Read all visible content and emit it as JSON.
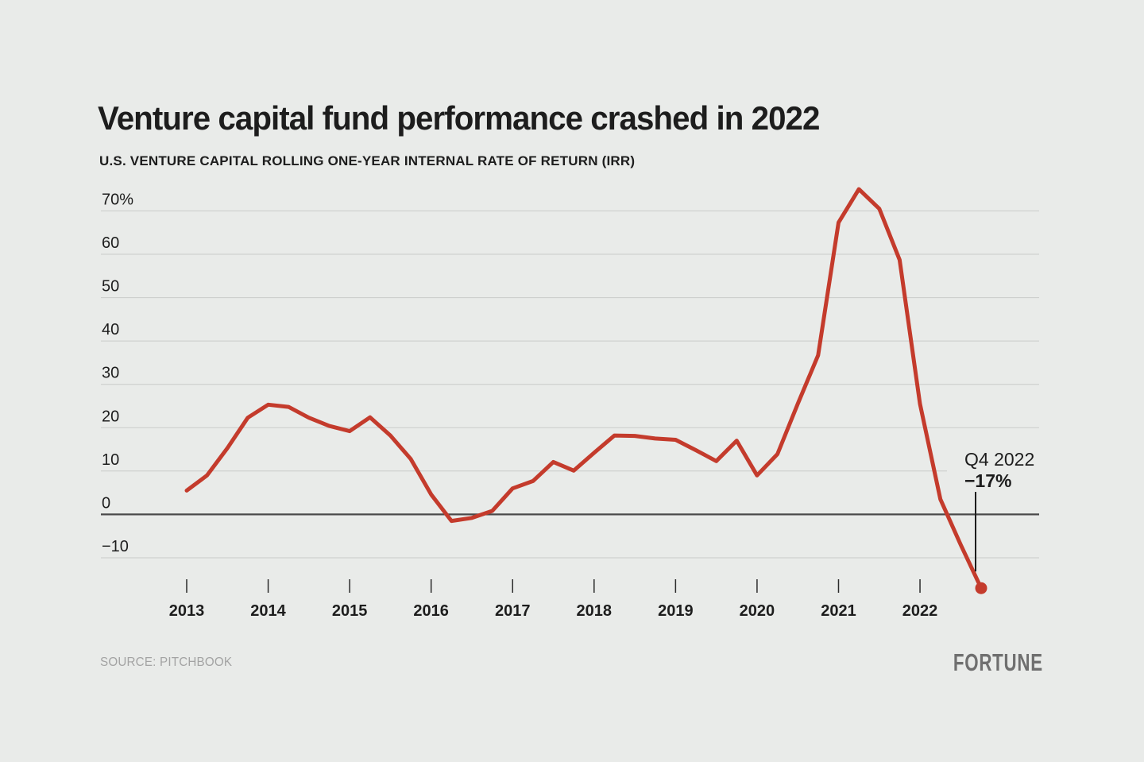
{
  "header": {
    "title": "Venture capital fund performance crashed in 2022",
    "subtitle": "U.S. VENTURE CAPITAL ROLLING ONE-YEAR INTERNAL RATE OF RETURN (IRR)"
  },
  "annotation": {
    "label": "Q4 2022",
    "value": "−17%"
  },
  "footer": {
    "source": "SOURCE: PITCHBOOK",
    "brand": "FORTUNE"
  },
  "colors": {
    "background": "#e9ebe9",
    "line": "#c43b2c",
    "grid": "#c9cbc9",
    "zero_line": "#4a4a4a",
    "text": "#1d1d1d",
    "tick": "#2b2b2b",
    "muted_text": "#a3a3a3",
    "brand": "#6f6f6f"
  },
  "chart_data": {
    "type": "line",
    "title": "Venture capital fund performance crashed in 2022",
    "subtitle": "U.S. VENTURE CAPITAL ROLLING ONE-YEAR INTERNAL RATE OF RETURN (IRR)",
    "series_name": "U.S. venture capital rolling one-year IRR (%)",
    "grid": true,
    "legend": false,
    "ylim": [
      -18,
      76
    ],
    "x": [
      "2013 Q1",
      "2013 Q2",
      "2013 Q3",
      "2013 Q4",
      "2014 Q1",
      "2014 Q2",
      "2014 Q3",
      "2014 Q4",
      "2015 Q1",
      "2015 Q2",
      "2015 Q3",
      "2015 Q4",
      "2016 Q1",
      "2016 Q2",
      "2016 Q3",
      "2016 Q4",
      "2017 Q1",
      "2017 Q2",
      "2017 Q3",
      "2017 Q4",
      "2018 Q1",
      "2018 Q2",
      "2018 Q3",
      "2018 Q4",
      "2019 Q1",
      "2019 Q2",
      "2019 Q3",
      "2019 Q4",
      "2020 Q1",
      "2020 Q2",
      "2020 Q3",
      "2020 Q4",
      "2021 Q1",
      "2021 Q2",
      "2021 Q3",
      "2021 Q4",
      "2022 Q1",
      "2022 Q2",
      "2022 Q3",
      "2022 Q4"
    ],
    "values": [
      5.5,
      9,
      15.3,
      22.3,
      25.3,
      24.8,
      22.3,
      20.4,
      19.2,
      22.4,
      18.2,
      12.8,
      4.6,
      -1.5,
      -0.8,
      0.8,
      6,
      7.7,
      12.1,
      10.1,
      14.2,
      18.2,
      18.1,
      17.5,
      17.2,
      14.8,
      12.3,
      17,
      9,
      13.9,
      25.5,
      36.7,
      67.3,
      75,
      70.5,
      58.7,
      25.5,
      3.5,
      -7,
      -17
    ],
    "y_axis": {
      "ticks": [
        {
          "value": 70,
          "label": "70%"
        },
        {
          "value": 60,
          "label": "60"
        },
        {
          "value": 50,
          "label": "50"
        },
        {
          "value": 40,
          "label": "40"
        },
        {
          "value": 30,
          "label": "30"
        },
        {
          "value": 20,
          "label": "20"
        },
        {
          "value": 10,
          "label": "10"
        },
        {
          "value": 0,
          "label": "0"
        },
        {
          "value": -10,
          "label": "−10"
        }
      ]
    },
    "x_axis": {
      "tick_labels": [
        "2013",
        "2014",
        "2015",
        "2016",
        "2017",
        "2018",
        "2019",
        "2020",
        "2021",
        "2022"
      ]
    },
    "annotation": {
      "x": "2022 Q4",
      "y": -17,
      "label": "Q4 2022",
      "value_label": "−17%"
    }
  }
}
